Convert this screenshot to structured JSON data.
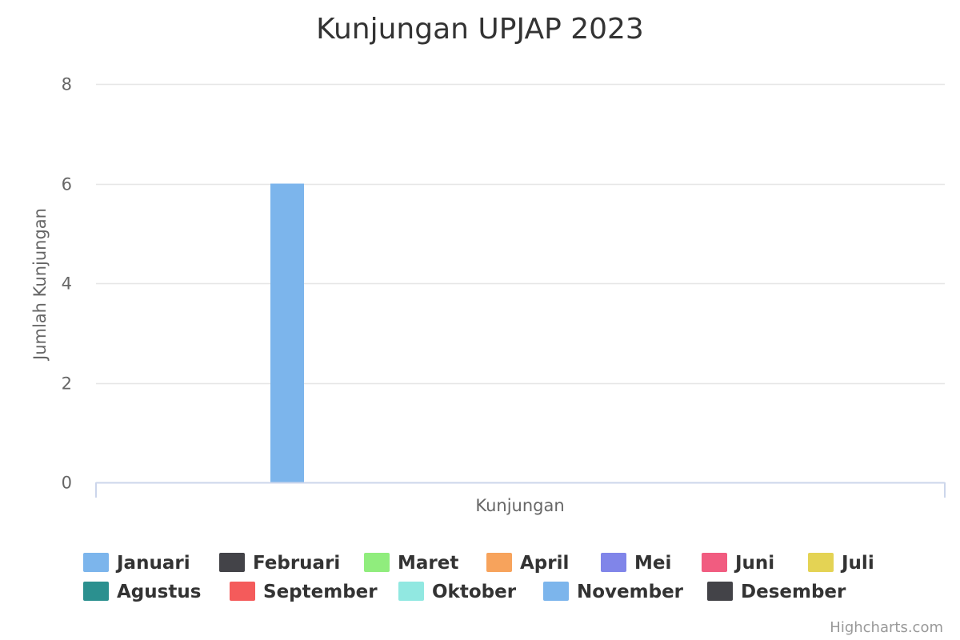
{
  "chart_data": {
    "type": "bar",
    "title": "Kunjungan UPJAP 2023",
    "categories": [
      "Kunjungan"
    ],
    "xlabel": "Kunjungan",
    "ylabel": "Jumlah Kunjungan",
    "ylim": [
      0,
      8
    ],
    "yticks": [
      "0",
      "2",
      "4",
      "6",
      "8"
    ],
    "grid": true,
    "legend_position": "bottom",
    "series": [
      {
        "name": "Januari",
        "values": [
          6
        ],
        "color": "#7cb5ec"
      },
      {
        "name": "Februari",
        "values": [
          0
        ],
        "color": "#434348"
      },
      {
        "name": "Maret",
        "values": [
          0
        ],
        "color": "#90ed7d"
      },
      {
        "name": "April",
        "values": [
          0
        ],
        "color": "#f7a35c"
      },
      {
        "name": "Mei",
        "values": [
          0
        ],
        "color": "#8085e9"
      },
      {
        "name": "Juni",
        "values": [
          0
        ],
        "color": "#f15c80"
      },
      {
        "name": "Juli",
        "values": [
          0
        ],
        "color": "#e4d354"
      },
      {
        "name": "Agustus",
        "values": [
          0
        ],
        "color": "#2b908f"
      },
      {
        "name": "September",
        "values": [
          0
        ],
        "color": "#f45b5b"
      },
      {
        "name": "Oktober",
        "values": [
          0
        ],
        "color": "#91e8e1"
      },
      {
        "name": "November",
        "values": [
          0
        ],
        "color": "#7cb5ec"
      },
      {
        "name": "Desember",
        "values": [
          0
        ],
        "color": "#434348"
      }
    ],
    "credits": "Highcharts.com",
    "colors": {
      "grid": "#e6e6e6",
      "axis_line": "#ccd6eb",
      "text": "#333333",
      "muted_text": "#666666",
      "credits": "#999999"
    }
  }
}
